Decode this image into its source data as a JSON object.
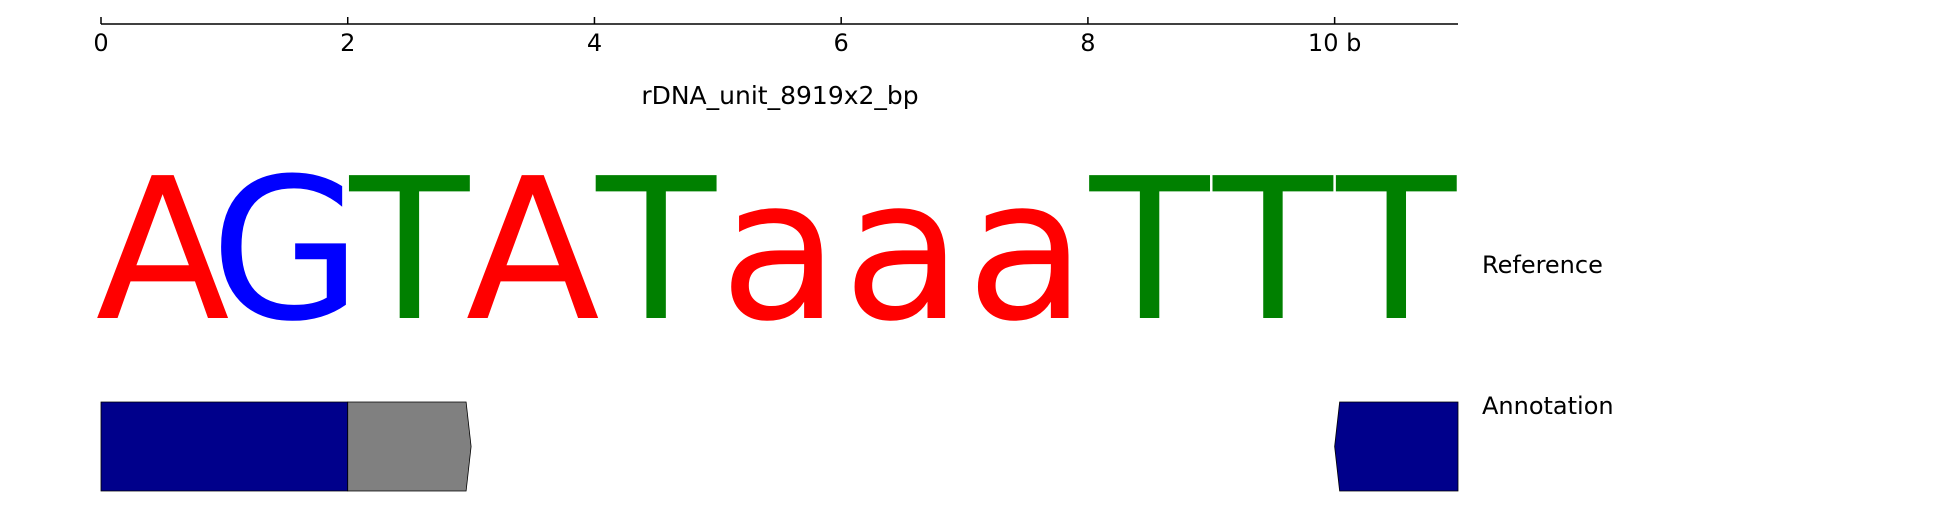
{
  "ruler": {
    "ticks": [
      "0",
      "2",
      "4",
      "6",
      "8",
      "10 b"
    ],
    "tick_positions": [
      0,
      2,
      4,
      6,
      8,
      10
    ],
    "range": [
      0,
      11
    ]
  },
  "title": "rDNA_unit_8919x2_bp",
  "reference": {
    "label": "Reference",
    "bases": [
      {
        "char": "A",
        "color": "#ff0000"
      },
      {
        "char": "G",
        "color": "#0000ff"
      },
      {
        "char": "T",
        "color": "#008000"
      },
      {
        "char": "A",
        "color": "#ff0000"
      },
      {
        "char": "T",
        "color": "#008000"
      },
      {
        "char": "a",
        "color": "#ff0000"
      },
      {
        "char": "a",
        "color": "#ff0000"
      },
      {
        "char": "a",
        "color": "#ff0000"
      },
      {
        "char": "T",
        "color": "#008000"
      },
      {
        "char": "T",
        "color": "#008000"
      },
      {
        "char": "T",
        "color": "#008000"
      }
    ]
  },
  "annotation": {
    "label": "Annotation",
    "features": [
      {
        "start": 0,
        "end": 2,
        "shape": "box",
        "color": "#00008b"
      },
      {
        "start": 2,
        "end": 3,
        "shape": "arrow-right",
        "color": "#808080"
      },
      {
        "start": 10,
        "end": 11,
        "shape": "arrow-left",
        "color": "#00008b"
      }
    ]
  }
}
